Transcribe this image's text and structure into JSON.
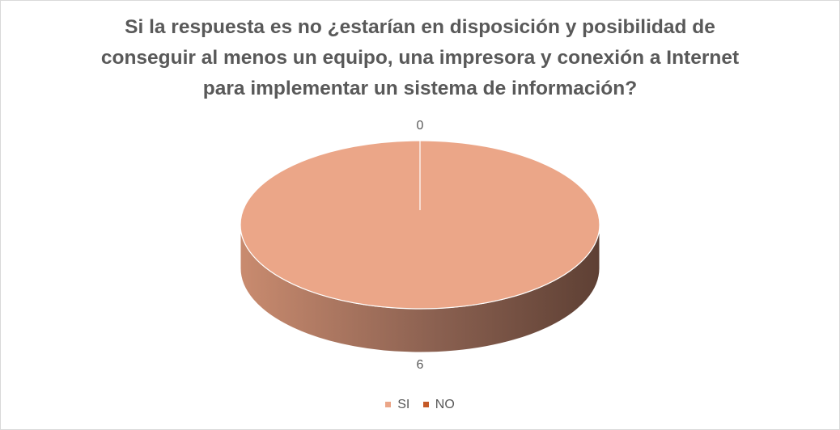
{
  "chart_data": {
    "type": "pie",
    "title_lines": [
      "Si la respuesta es no ¿estarían en disposición y posibilidad de",
      "conseguir al menos un equipo, una impresora y conexión a Internet",
      "para implementar un sistema de información?"
    ],
    "categories": [
      "SI",
      "NO"
    ],
    "values": [
      6,
      0
    ],
    "data_labels": [
      "6",
      "0"
    ],
    "colors": [
      "#EBA688",
      "#C55A28"
    ],
    "side_shade_light": "#C98B6F",
    "side_shade_dark": "#5E4034",
    "legend_position": "bottom",
    "three_d": true
  }
}
